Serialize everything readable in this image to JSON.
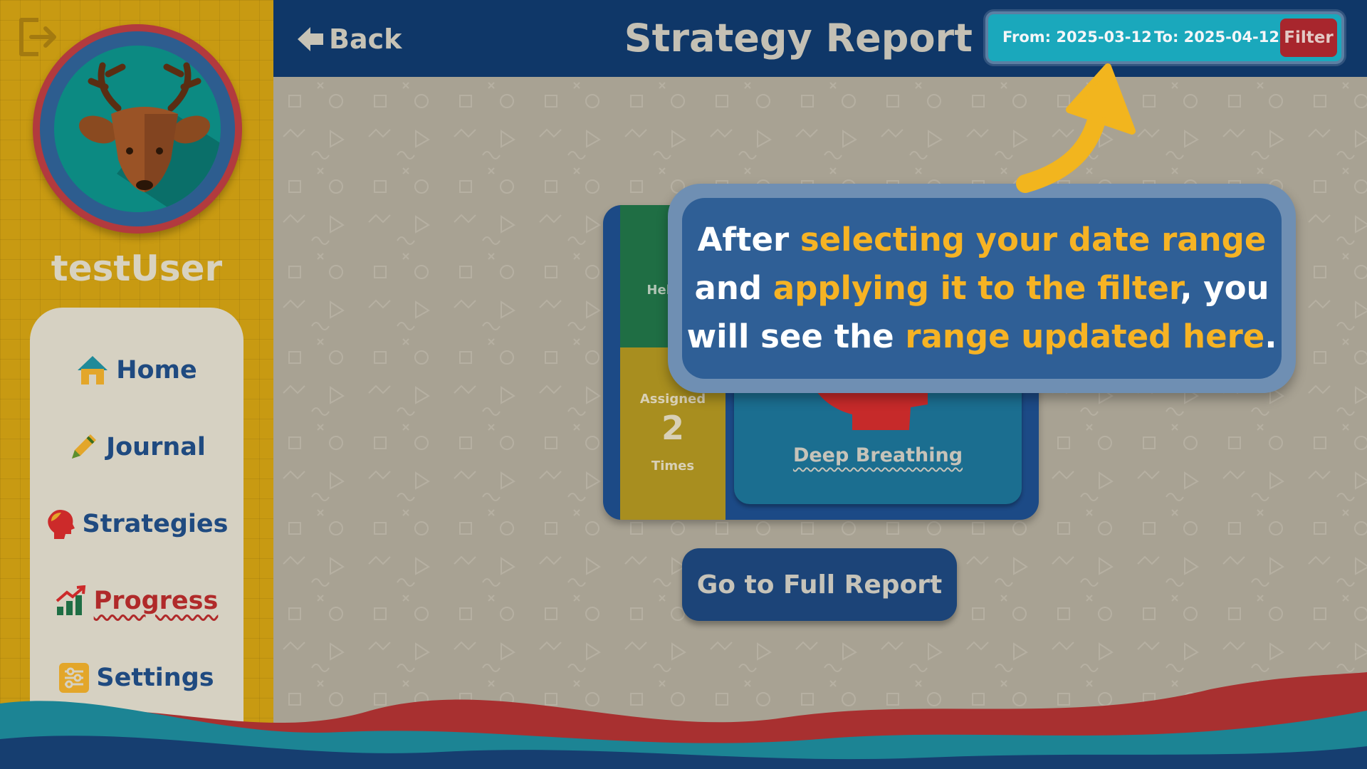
{
  "sidebar": {
    "username": "testUser",
    "items": [
      {
        "label": "Home",
        "icon": "house-icon"
      },
      {
        "label": "Journal",
        "icon": "pencil-icon"
      },
      {
        "label": "Strategies",
        "icon": "head-icon"
      },
      {
        "label": "Progress",
        "icon": "chart-icon",
        "active": true
      },
      {
        "label": "Settings",
        "icon": "sliders-icon"
      }
    ]
  },
  "header": {
    "back_label": "Back",
    "title": "Strategy Report",
    "filter": {
      "from": "From: 2025-03-12",
      "to": "To: 2025-04-12",
      "button": "Filter"
    }
  },
  "card": {
    "helpful_label": "Helpful",
    "assigned_label": "Assigned",
    "assigned_count": "2",
    "assigned_unit": "Times",
    "strategy_name": "Deep Breathing"
  },
  "full_report_label": "Go to Full Report",
  "tooltip": {
    "part1": "After ",
    "hl1": "selecting your date range",
    "part2": " and ",
    "hl2": "applying it to the filter",
    "part3": ", you will see the ",
    "hl3": "range updated here",
    "part4": "."
  },
  "colors": {
    "sidebar": "#c89a12",
    "header": "#0f3768",
    "highlight": "#f6b324",
    "filter_bar": "#1aa8bc",
    "filter_button": "#a8262d"
  }
}
